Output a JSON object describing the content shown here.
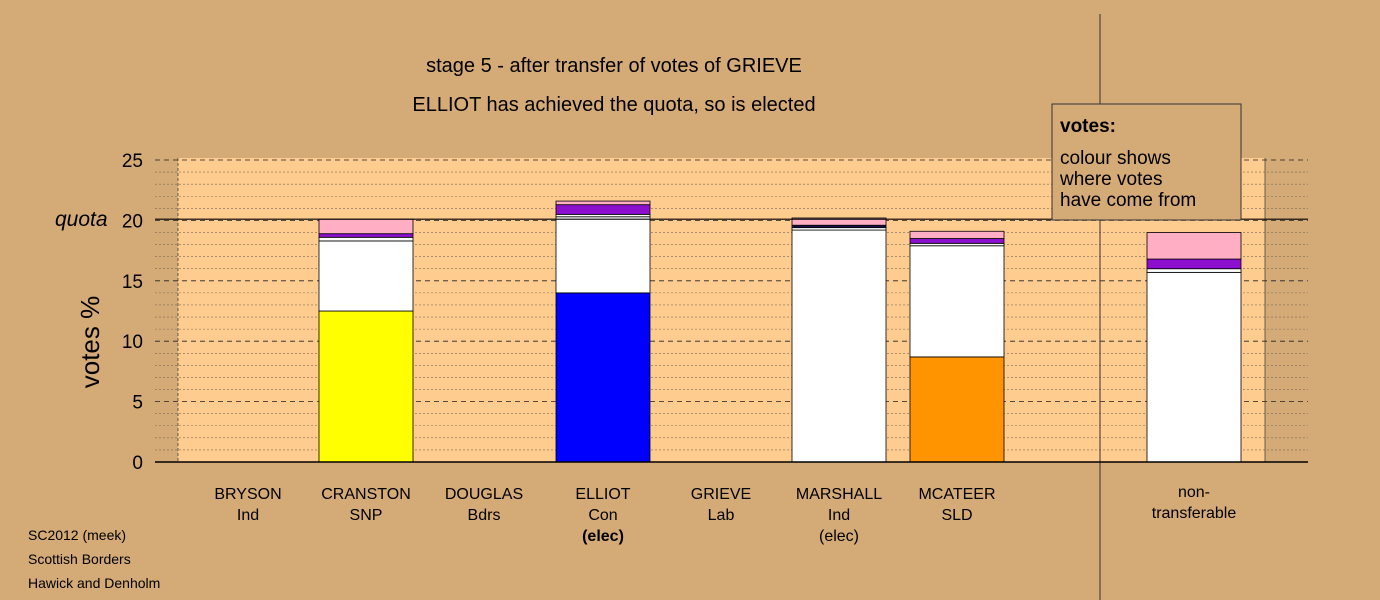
{
  "colors": {
    "page_bg": "#d4aa77",
    "plot_bg": "#ffcc90",
    "SNP": "#ffff00",
    "Con": "#0000ff",
    "SLD": "#ff9400",
    "Ind": "#ffffff",
    "Lab": "#ffffff",
    "transfer_white": "#ffffff",
    "transfer_purple": "#8c0fd0",
    "transfer_pink": "#ffaec4",
    "transfer_navy": "#1a1050"
  },
  "chart_data": {
    "type": "bar",
    "title": "stage 5 - after transfer of votes of GRIEVE",
    "subtitle": "ELLIOT has achieved the quota, so is elected",
    "ylabel": "votes %",
    "ylim": [
      0,
      25
    ],
    "yticks": [
      0,
      5,
      10,
      15,
      20,
      25
    ],
    "quota": 20.1,
    "quota_label": "quota",
    "stacked": true,
    "candidates": [
      {
        "name": "BRYSON",
        "party": "Ind",
        "status": "",
        "segments": []
      },
      {
        "name": "CRANSTON",
        "party": "SNP",
        "status": "",
        "segments": [
          {
            "source": "SNP",
            "value": 12.5
          },
          {
            "source": "transfer_white",
            "value": 5.8
          },
          {
            "source": "transfer_white",
            "value": 0.3
          },
          {
            "source": "transfer_purple",
            "value": 0.3
          },
          {
            "source": "transfer_pink",
            "value": 1.2
          }
        ]
      },
      {
        "name": "DOUGLAS",
        "party": "Bdrs",
        "status": "",
        "segments": []
      },
      {
        "name": "ELLIOT",
        "party": "Con",
        "status": "(elec)",
        "segments": [
          {
            "source": "Con",
            "value": 14.0
          },
          {
            "source": "transfer_white",
            "value": 6.3
          },
          {
            "source": "transfer_white",
            "value": 0.2
          },
          {
            "source": "transfer_purple",
            "value": 0.8
          },
          {
            "source": "transfer_pink",
            "value": 0.3
          }
        ]
      },
      {
        "name": "GRIEVE",
        "party": "Lab",
        "status": "",
        "segments": []
      },
      {
        "name": "MARSHALL",
        "party": "Ind",
        "status": "(elec)",
        "segments": [
          {
            "source": "Ind",
            "value": 19.2
          },
          {
            "source": "transfer_white",
            "value": 0.2
          },
          {
            "source": "transfer_navy",
            "value": 0.2
          },
          {
            "source": "transfer_pink",
            "value": 0.6
          }
        ]
      },
      {
        "name": "MCATEER",
        "party": "SLD",
        "status": "",
        "segments": [
          {
            "source": "SLD",
            "value": 8.7
          },
          {
            "source": "transfer_white",
            "value": 9.2
          },
          {
            "source": "transfer_white",
            "value": 0.2
          },
          {
            "source": "transfer_purple",
            "value": 0.4
          },
          {
            "source": "transfer_pink",
            "value": 0.6
          }
        ]
      }
    ],
    "nontransferable": {
      "label_line1": "non-",
      "label_line2": "transferable",
      "segments": [
        {
          "source": "transfer_white",
          "value": 15.7
        },
        {
          "source": "transfer_white",
          "value": 0.3
        },
        {
          "source": "transfer_purple",
          "value": 0.8
        },
        {
          "source": "transfer_pink",
          "value": 2.2
        }
      ]
    },
    "legend": {
      "heading": "votes:",
      "lines": [
        "colour shows",
        "where votes",
        "have come from"
      ]
    }
  },
  "footer": {
    "lines": [
      "SC2012 (meek)",
      "Scottish Borders",
      "Hawick and Denholm"
    ]
  }
}
